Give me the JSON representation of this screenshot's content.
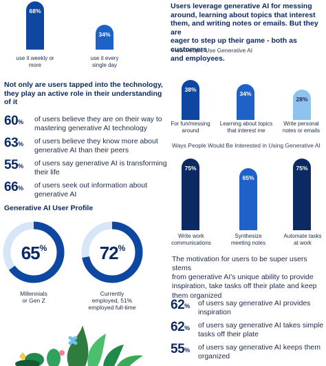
{
  "colors": {
    "navy": "#0b2a63",
    "blue": "#0d47a1",
    "mid_blue": "#1e62c9",
    "light_blue": "#8ec3ef",
    "ring_bg": "#d6e6f7"
  },
  "chart_data": [
    {
      "type": "bar",
      "categories": [
        "use it weekly or more",
        "use it every single day"
      ],
      "values": [
        68,
        34
      ],
      "data_labels": [
        "68%",
        "34%"
      ],
      "ylim": [
        0,
        100
      ],
      "colors": [
        "#0d47a1",
        "#1e62c9"
      ]
    },
    {
      "type": "bar",
      "title": "How People Use Generative AI",
      "categories": [
        "For fun/messing around",
        "Learning about topics that interest me",
        "Write personal notes or emails"
      ],
      "values": [
        38,
        34,
        28
      ],
      "data_labels": [
        "38%",
        "34%",
        "28%"
      ],
      "ylim": [
        0,
        100
      ],
      "colors": [
        "#0d47a1",
        "#1e62c9",
        "#8ec3ef"
      ]
    },
    {
      "type": "bar",
      "title": "Ways People Would Be Interested in Using Generative AI",
      "categories": [
        "Write work communications",
        "Synthesize meeting notes",
        "Automate tasks at work"
      ],
      "values": [
        75,
        65,
        75
      ],
      "data_labels": [
        "75%",
        "65%",
        "75%"
      ],
      "ylim": [
        0,
        100
      ],
      "colors": [
        "#0b2a63",
        "#1e62c9",
        "#0b2a63"
      ]
    },
    {
      "type": "pie",
      "title": "Generative AI User Profile",
      "categories": [
        "Millennials or Gen Z",
        "Currently employed, 51% employed full-time"
      ],
      "values": [
        65,
        72
      ],
      "data_labels": [
        "65%",
        "72%"
      ]
    }
  ],
  "top_bars": {
    "items": [
      {
        "value": "68%",
        "label_1": "use it weekly or",
        "label_2": "more"
      },
      {
        "value": "34%",
        "label_1": "use it every",
        "label_2": "single day"
      }
    ]
  },
  "right_intro": {
    "line_1": "Users leverage generative AI for messing",
    "line_2": "around, learning about topics that interest",
    "line_3": "them, and writing notes or emails. But they are",
    "line_4": "eager to step up their game - both as customers",
    "line_5": "and employees."
  },
  "use_chart": {
    "title": "How People Use Generative AI",
    "items": [
      {
        "value": "38%",
        "label_1": "For fun/messing",
        "label_2": "around"
      },
      {
        "value": "34%",
        "label_1": "Learning about topics",
        "label_2": "that interest me"
      },
      {
        "value": "28%",
        "label_1": "Write personal",
        "label_2": "notes or emails"
      }
    ]
  },
  "interest_chart": {
    "title": "Ways People Would Be Interested in Using Generative AI",
    "items": [
      {
        "value": "75%",
        "label_1": "Write work",
        "label_2": "communications"
      },
      {
        "value": "65%",
        "label_1": "Synthesize",
        "label_2": "meeting notes"
      },
      {
        "value": "75%",
        "label_1": "Automate tasks",
        "label_2": "at work"
      }
    ]
  },
  "left_section": {
    "heading_1": "Not only are users tapped into the technology,",
    "heading_2": "they play an active role in their understanding",
    "heading_3": "of it",
    "stats": [
      {
        "num": "60",
        "pct": "%",
        "line_1": "of users believe they are on their way to",
        "line_2": "mastering generative AI technology"
      },
      {
        "num": "63",
        "pct": "%",
        "line_1": "of users believe they know more about",
        "line_2": "generative AI than their peers"
      },
      {
        "num": "55",
        "pct": "%",
        "line_1": "of users say generative AI is transforming",
        "line_2": "their life"
      },
      {
        "num": "66",
        "pct": "%",
        "line_1": "of users seek out information about",
        "line_2": "generative AI"
      }
    ]
  },
  "profile": {
    "title": "Generative AI User Profile",
    "donuts": [
      {
        "value": "65%",
        "num": "65",
        "pct": "%",
        "label_1": "Millennials",
        "label_2": "or Gen Z"
      },
      {
        "value": "72%",
        "num": "72",
        "pct": "%",
        "label_1": "Currently",
        "label_2": "employed, 51%",
        "label_3": "employed full-time"
      }
    ]
  },
  "motivation": {
    "line_1": "The motivation for users to be super users stems",
    "line_2": "from generative AI's unique ability to provide",
    "line_3": "inspiration, take tasks off their plate and keep",
    "line_4": "them organized",
    "stats": [
      {
        "num": "62",
        "pct": "%",
        "line_1": "of users say generative AI provides",
        "line_2": "inspiration"
      },
      {
        "num": "62",
        "pct": "%",
        "line_1": "of users say generative AI  takes simple",
        "line_2": "tasks off their plate"
      },
      {
        "num": "55",
        "pct": "%",
        "line_1": "of users say generative AI keeps them",
        "line_2": "organized"
      }
    ]
  }
}
